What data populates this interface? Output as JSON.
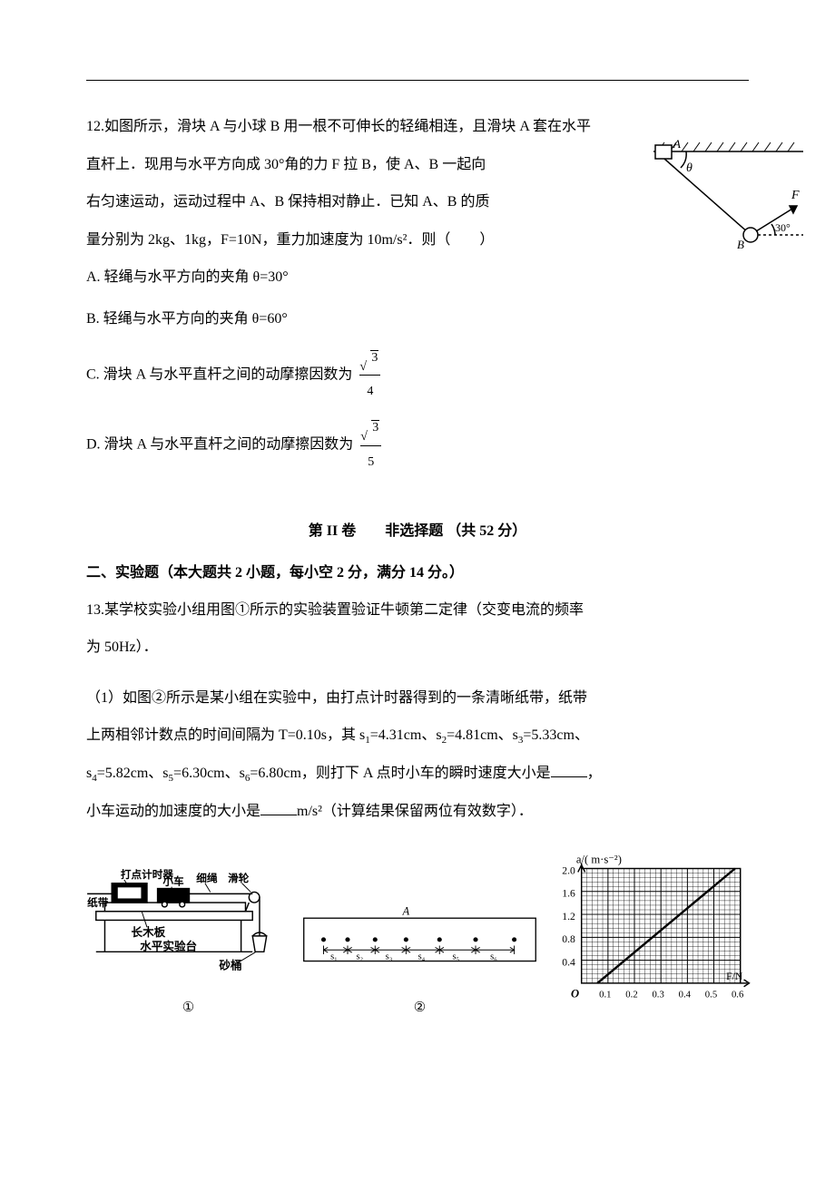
{
  "q12": {
    "stem_part1": "12.如图所示，滑块 A 与小球 B 用一根不可伸长的轻绳相连，且滑块 A 套在水平",
    "stem_part2": "直杆上．现用与水平方向成 30°角的力 F 拉 B，使 A、B 一起向",
    "stem_part3": "右匀速运动，运动过程中 A、B 保持相对静止．已知 A、B 的质",
    "stem_part4": "量分别为 2kg、1kg，F=10N，重力加速度为 10m/s²．则（　　）",
    "optA": "A.  轻绳与水平方向的夹角 θ=30°",
    "optB": "B.  轻绳与水平方向的夹角 θ=60°",
    "optC_prefix": "C.  滑块 A 与水平直杆之间的动摩擦因数为",
    "optC_num": "3",
    "optC_den": "4",
    "optD_prefix": "D.  滑块 A 与水平直杆之间的动摩擦因数为",
    "optD_num": "3",
    "optD_den": "5",
    "fig": {
      "label_A": "A",
      "label_theta": "θ",
      "label_F": "F",
      "label_30": "30°",
      "label_B": "B",
      "bar_color": "#000000",
      "hatch_color": "#000000",
      "stroke_color": "#000000"
    }
  },
  "section2": {
    "header": "第 II 卷　　非选择题 （共  52 分）",
    "sub": "二、实验题（本大题共 2 小题，每小空 2 分，满分 14 分。）"
  },
  "q13": {
    "stem_l1": "13.某学校实验小组用图①所示的实验装置验证牛顿第二定律（交变电流的频率",
    "stem_l2": "为 50Hz）．",
    "p1_l1": "（1）如图②所示是某小组在实验中，由打点计时器得到的一条清晰纸带，纸带",
    "p1_l2_a": "上两相邻计数点的时间间隔为 T=0.10s，其 s",
    "p1_l2_b": "=4.31cm、s",
    "p1_l2_c": "=4.81cm、s",
    "p1_l2_d": "=5.33cm、",
    "p1_l3_a": "s",
    "p1_l3_b": "=5.82cm、s",
    "p1_l3_c": "=6.30cm、s",
    "p1_l3_d": "=6.80cm，则打下 A 点时小车的瞬时速度大小是",
    "p1_l3_e": "，",
    "p1_l4_a": "小车运动的加速度的大小是",
    "p1_l4_b": "m/s²（计算结果保留两位有效数字）．",
    "fig1": {
      "labels": {
        "timer": "打点计时器",
        "cart": "小车",
        "rope": "细绳",
        "pulley": "滑轮",
        "tape": "纸带",
        "board": "长木板",
        "table": "水平实验台",
        "bucket": "砂桶"
      },
      "circle_label": "①",
      "stroke": "#000000"
    },
    "fig2": {
      "point_label": "A",
      "seg_labels": [
        "s₁",
        "s₂",
        "s₃",
        "s₄",
        "s₅",
        "s₆"
      ],
      "circle_label": "②",
      "stroke": "#000000"
    },
    "fig3": {
      "y_title": "a/( m·s⁻²)",
      "x_title": "F/N",
      "y_ticks": [
        "0.4",
        "0.8",
        "1.2",
        "1.6",
        "2.0"
      ],
      "x_ticks": [
        "0.1",
        "0.2",
        "0.3",
        "0.4",
        "0.5",
        "0.6"
      ],
      "origin_label": "O",
      "ylim": [
        0,
        2.0
      ],
      "xlim": [
        0,
        0.6
      ],
      "grid_color": "#000000",
      "grid_minor_step": 5,
      "line_points": [
        [
          0.06,
          0
        ],
        [
          0.58,
          2.0
        ]
      ],
      "line_color": "#000000",
      "line_width": 2,
      "background_color": "#ffffff"
    }
  }
}
